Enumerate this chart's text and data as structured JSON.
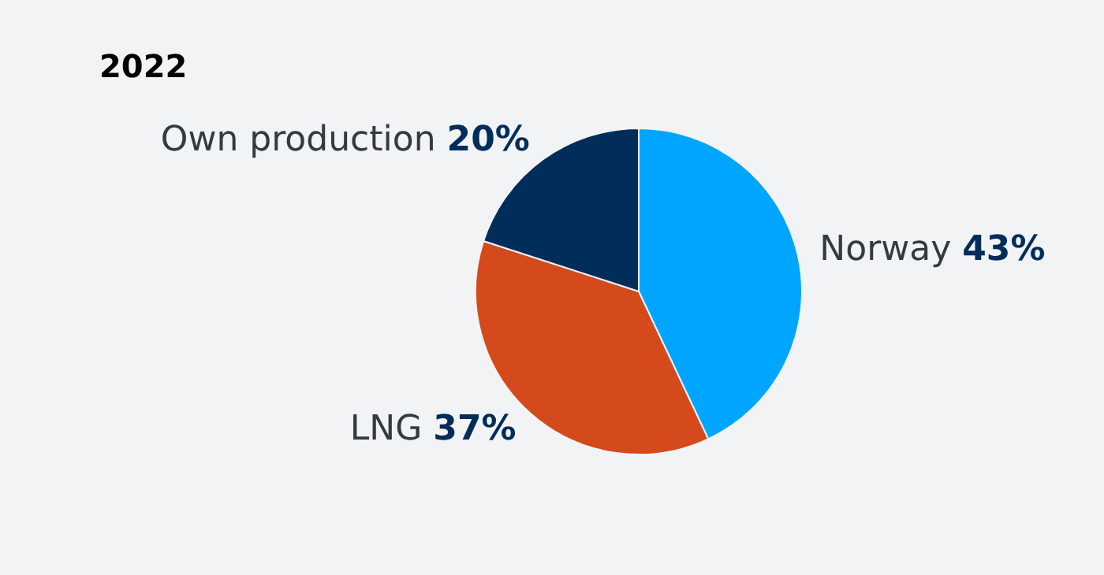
{
  "chart_data": {
    "type": "pie",
    "title": "2022",
    "categories": [
      "Norway",
      "LNG",
      "Own production"
    ],
    "values": [
      43,
      37,
      20
    ],
    "colors": [
      "#00a5ff",
      "#d44a1d",
      "#002d5a"
    ],
    "value_labels": [
      "43%",
      "37%",
      "20%"
    ],
    "legend": false
  }
}
